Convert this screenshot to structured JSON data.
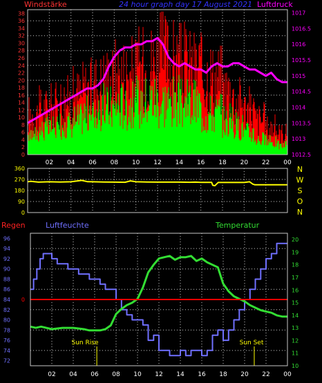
{
  "colors": {
    "background": "#000000",
    "frame": "#c8c8c8",
    "grid": "#ffffff",
    "wind": "#ff0000",
    "gust": "#ff0000",
    "wind_green": "#00ff00",
    "pressure": "#ff00ff",
    "direction": "#ffff00",
    "compass": "#ffff00",
    "regen": "#ff0000",
    "humidity": "#7070ff",
    "temperature": "#33dd33",
    "sun_label": "#ffff00",
    "left_ticks_top": "#ff3333",
    "right_ticks_top": "#ff00ff",
    "dir_ticks": "#ffff00",
    "hum_ticks": "#7070ff",
    "temp_ticks": "#33dd33",
    "title": "#3333ff",
    "time_ticks": "#ffffff"
  },
  "chart_data": [
    {
      "type": "bar",
      "title": "24 hour graph day 17 August 2021",
      "left_label": "Windstärke",
      "right_label": "Luftdruck",
      "x_ticks": [
        "02",
        "04",
        "06",
        "08",
        "10",
        "12",
        "14",
        "16",
        "18",
        "20",
        "22",
        "00"
      ],
      "y_left_ticks": [
        "0",
        "2",
        "4",
        "6",
        "8",
        "10",
        "12",
        "14",
        "16",
        "18",
        "20",
        "22",
        "24",
        "26",
        "28",
        "30",
        "32",
        "34",
        "36",
        "38"
      ],
      "y_left_range": [
        0,
        39
      ],
      "y_right_ticks": [
        "1012.5",
        "1013",
        "1013.5",
        "1014",
        "1014.5",
        "1015",
        "1015.5",
        "1016",
        "1016.5",
        "1017"
      ],
      "y_right_range": [
        1012.5,
        1017.1
      ],
      "x_range_hours": [
        0,
        24
      ],
      "series": [
        {
          "name": "Windstärke",
          "kind": "bars",
          "hourly_avg": [
            7,
            8,
            9,
            10,
            11,
            13,
            14,
            15,
            16,
            16,
            17,
            18,
            17,
            17,
            16,
            16,
            13,
            13,
            11,
            9,
            7,
            5,
            4,
            3
          ],
          "hourly_gust": [
            15,
            17,
            18,
            20,
            22,
            24,
            26,
            28,
            30,
            30,
            32,
            34,
            36,
            34,
            33,
            32,
            30,
            28,
            24,
            20,
            17,
            13,
            10,
            8
          ]
        },
        {
          "name": "Luftdruck",
          "kind": "line",
          "x": [
            0,
            0.5,
            1,
            1.5,
            2,
            2.5,
            3,
            3.5,
            4,
            4.5,
            5,
            5.5,
            6,
            6.5,
            7,
            7.5,
            8,
            8.5,
            9,
            9.5,
            10,
            10.5,
            11,
            11.5,
            12,
            12.5,
            13,
            13.5,
            14,
            14.5,
            15,
            15.5,
            16,
            16.5,
            17,
            17.5,
            18,
            18.5,
            19,
            19.5,
            20,
            20.5,
            21,
            21.5,
            22,
            22.5,
            23,
            23.5,
            24
          ],
          "y": [
            1013.5,
            1013.6,
            1013.7,
            1013.8,
            1013.9,
            1014.0,
            1014.1,
            1014.2,
            1014.3,
            1014.4,
            1014.5,
            1014.6,
            1014.6,
            1014.7,
            1014.9,
            1015.3,
            1015.6,
            1015.8,
            1015.9,
            1015.9,
            1016.0,
            1016.0,
            1016.1,
            1016.1,
            1016.2,
            1016.0,
            1015.6,
            1015.4,
            1015.3,
            1015.4,
            1015.3,
            1015.2,
            1015.2,
            1015.1,
            1015.3,
            1015.4,
            1015.3,
            1015.3,
            1015.4,
            1015.4,
            1015.3,
            1015.2,
            1015.2,
            1015.1,
            1015.0,
            1015.1,
            1014.9,
            1014.8,
            1014.8
          ]
        }
      ]
    },
    {
      "type": "line",
      "compass": [
        "N",
        "W",
        "S",
        "O",
        "N"
      ],
      "y_ticks": [
        "0",
        "90",
        "180",
        "270",
        "360"
      ],
      "y_range": [
        0,
        360
      ],
      "series": [
        {
          "name": "Windrichtung",
          "x": [
            0,
            0.3,
            1,
            2,
            3,
            4,
            5,
            5.5,
            6,
            7,
            8,
            9,
            9.5,
            10,
            11,
            12,
            13,
            14,
            15,
            15.5,
            16,
            16.5,
            17,
            17.1,
            17.3,
            17.6,
            18,
            18.5,
            19,
            19.5,
            20,
            20.5,
            20.8,
            21,
            21.5,
            22,
            23,
            24
          ],
          "y": [
            251,
            255,
            248,
            251,
            249,
            251,
            262,
            252,
            251,
            249,
            248,
            247,
            258,
            251,
            249,
            248,
            248,
            248,
            247,
            248,
            246,
            246,
            246,
            222,
            219,
            245,
            245,
            245,
            245,
            245,
            245,
            251,
            232,
            226,
            226,
            226,
            226,
            226
          ]
        }
      ]
    },
    {
      "type": "line",
      "labels": {
        "regen": "Regen",
        "humidity": "Luftfeuchte",
        "temperature": "Temperatur"
      },
      "y_left_ticks": [
        "72",
        "74",
        "76",
        "78",
        "80",
        "82",
        "84",
        "86",
        "88",
        "90",
        "92",
        "94",
        "96"
      ],
      "y_left_range": [
        71,
        97
      ],
      "y_right_ticks": [
        "10",
        "11",
        "12",
        "13",
        "14",
        "15",
        "16",
        "17",
        "18",
        "19",
        "20"
      ],
      "y_right_range": [
        10,
        20.5
      ],
      "regen_tick": "0",
      "regen_value": 0,
      "annotations": [
        {
          "text": "Sun Rise",
          "x": 6.2
        },
        {
          "text": "Sun Set",
          "x": 20.9
        }
      ],
      "series": [
        {
          "name": "Luftfeuchte",
          "x": [
            0,
            0.3,
            0.6,
            0.9,
            1.2,
            1.5,
            2,
            2.5,
            3,
            3.5,
            4,
            4.5,
            5,
            5.5,
            6,
            6.5,
            7,
            7.5,
            8,
            8.5,
            9,
            9.5,
            10,
            10.5,
            11,
            11.5,
            12,
            12.5,
            13,
            13.5,
            14,
            14.5,
            15,
            15.5,
            16,
            16.5,
            17,
            17.5,
            18,
            18.5,
            19,
            19.5,
            20,
            20.5,
            21,
            21.5,
            22,
            22.5,
            23,
            23.5,
            24
          ],
          "y": [
            86,
            88,
            90,
            92,
            93,
            93,
            92,
            91,
            91,
            90,
            90,
            89,
            89,
            88,
            88,
            87,
            86,
            86,
            84,
            82,
            81,
            80,
            80,
            79,
            76,
            77,
            74,
            74,
            73,
            73,
            74,
            73,
            74,
            74,
            73,
            74,
            77,
            78,
            76,
            78,
            80,
            82,
            84,
            86,
            88,
            90,
            92,
            93,
            95,
            95,
            95
          ]
        },
        {
          "name": "Temperatur",
          "x": [
            0,
            0.5,
            1,
            2,
            3,
            4,
            5,
            5.5,
            6,
            6.5,
            7,
            7.5,
            8,
            8.5,
            9,
            9.5,
            10,
            10.5,
            11,
            11.5,
            12,
            12.5,
            13,
            13.5,
            14,
            14.5,
            15,
            15.5,
            16,
            16.5,
            17,
            17.5,
            18,
            18.5,
            19,
            19.5,
            20,
            20.5,
            21,
            21.5,
            22,
            22.5,
            23,
            23.5,
            24
          ],
          "y": [
            13.1,
            13.0,
            13.1,
            12.9,
            13.0,
            13.0,
            12.9,
            12.8,
            12.8,
            12.8,
            12.9,
            13.2,
            14.1,
            14.5,
            14.8,
            15.0,
            15.3,
            16.2,
            17.4,
            18.0,
            18.5,
            18.6,
            18.7,
            18.4,
            18.6,
            18.6,
            18.7,
            18.3,
            18.5,
            18.2,
            18.0,
            17.8,
            16.5,
            15.9,
            15.5,
            15.3,
            15.1,
            14.8,
            14.6,
            14.4,
            14.3,
            14.2,
            14.0,
            13.9,
            13.9
          ]
        }
      ]
    }
  ]
}
